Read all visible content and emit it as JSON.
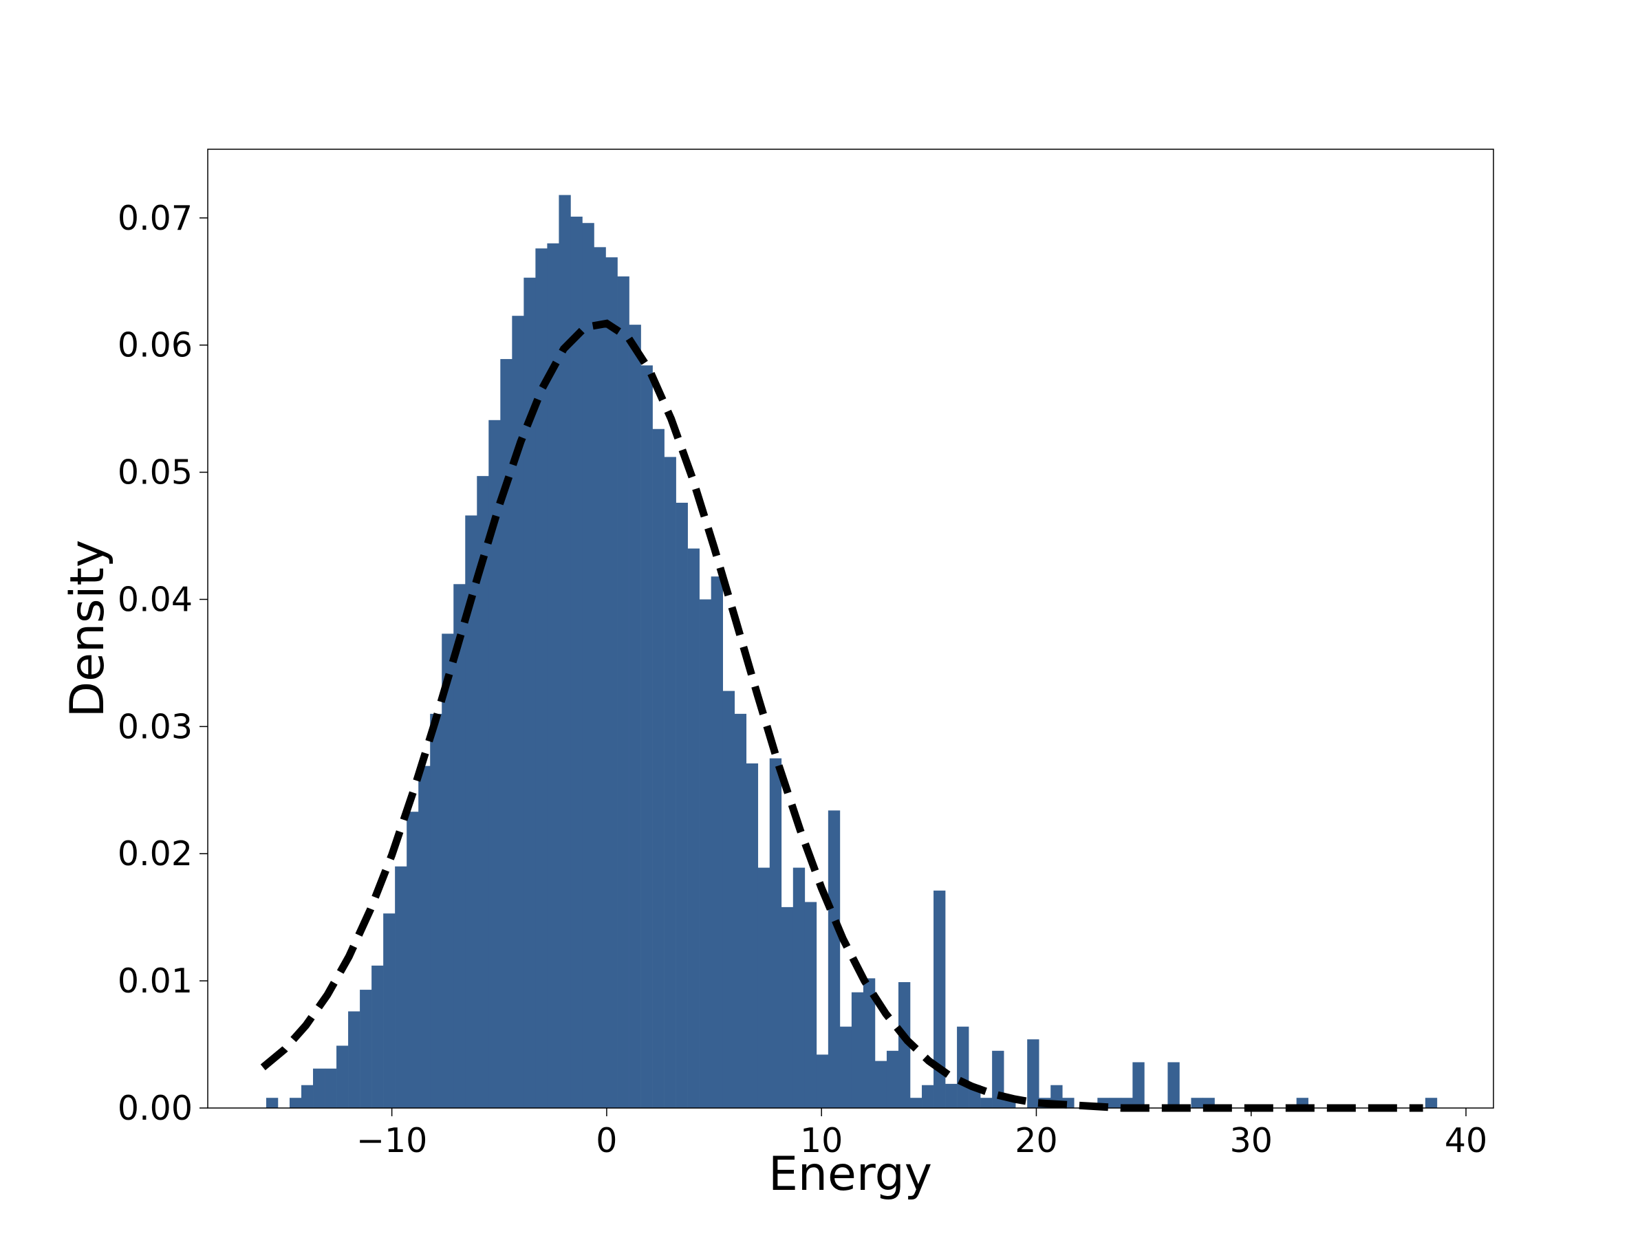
{
  "chart_data": {
    "type": "histogram",
    "xlabel": "Energy",
    "ylabel": "Density",
    "color": "#386192",
    "bins": [
      -15.85,
      -15.305,
      -14.76,
      -14.215,
      -13.67,
      -13.125,
      -12.58,
      -12.035,
      -11.49,
      -10.945,
      -10.4,
      -9.855,
      -9.31,
      -8.765,
      -8.22,
      -7.675,
      -7.13,
      -6.585,
      -6.04,
      -5.495,
      -4.95,
      -4.405,
      -3.86,
      -3.315,
      -2.77,
      -2.225,
      -1.68,
      -1.135,
      -0.59,
      -0.045,
      0.5,
      1.045,
      1.59,
      2.135,
      2.68,
      3.225,
      3.77,
      4.315,
      4.86,
      5.405,
      5.95,
      6.495,
      7.04,
      7.585,
      8.13,
      8.675,
      9.22,
      9.765,
      10.31,
      10.855,
      11.4,
      11.945,
      12.49,
      13.035,
      13.58,
      14.125,
      14.67,
      15.215,
      15.76,
      16.305,
      16.85,
      17.395,
      17.94,
      18.485,
      19.03,
      19.575,
      20.12,
      20.665,
      21.21,
      21.755,
      22.3,
      22.845,
      23.39,
      23.935,
      24.48,
      25.025,
      25.57,
      26.115,
      26.66,
      27.205,
      27.75,
      28.295,
      28.84,
      29.385,
      29.93,
      30.475,
      31.02,
      31.565,
      32.11,
      32.655,
      33.2,
      33.745,
      34.29,
      34.835,
      35.38,
      35.925,
      36.47,
      37.015,
      37.56,
      38.105,
      38.65
    ],
    "values": [
      0.0008,
      0,
      0.0008,
      0.0018,
      0.0031,
      0.0031,
      0.0049,
      0.0076,
      0.0093,
      0.0112,
      0.0153,
      0.019,
      0.0233,
      0.0269,
      0.031,
      0.0373,
      0.0412,
      0.0466,
      0.0497,
      0.0541,
      0.0589,
      0.0623,
      0.0653,
      0.0676,
      0.068,
      0.0718,
      0.0701,
      0.0696,
      0.0677,
      0.0669,
      0.0654,
      0.0616,
      0.0584,
      0.0534,
      0.0512,
      0.0476,
      0.044,
      0.04,
      0.0418,
      0.0328,
      0.031,
      0.0271,
      0.0189,
      0.0275,
      0.0158,
      0.0189,
      0.0162,
      0.0042,
      0.0234,
      0.0064,
      0.0091,
      0.0102,
      0.0037,
      0.0045,
      0.0099,
      0.0008,
      0.0018,
      0.0171,
      0.0019,
      0.0064,
      0.0018,
      0.0008,
      0.0045,
      0.0008,
      0,
      0.0054,
      0.0008,
      0.0018,
      0.0008,
      0,
      0,
      0.0008,
      0.0008,
      0.0008,
      0.0036,
      0,
      0,
      0.0036,
      0,
      0.0008,
      0.0008,
      0,
      0,
      0,
      0,
      0,
      0,
      0,
      0.0008,
      0,
      0,
      0,
      0,
      0,
      0,
      0,
      0,
      0,
      0,
      0.0008
    ],
    "curve": {
      "color": "#000000",
      "x": [
        -16,
        -15,
        -14,
        -13,
        -12,
        -11,
        -10,
        -9,
        -8,
        -7,
        -6,
        -5,
        -4,
        -3,
        -2,
        -1,
        0,
        1,
        2,
        3,
        4,
        5,
        6,
        7,
        8,
        9,
        10,
        11,
        12,
        13,
        14,
        15,
        16,
        17,
        18,
        19,
        20,
        21,
        22,
        23,
        24,
        25,
        26,
        27,
        28,
        29,
        30,
        31,
        32,
        33,
        34,
        35,
        36,
        37,
        38
      ],
      "values": [
        0.0032,
        0.0046,
        0.0065,
        0.0089,
        0.0119,
        0.0156,
        0.0199,
        0.0249,
        0.0303,
        0.036,
        0.0418,
        0.0474,
        0.0524,
        0.0566,
        0.0597,
        0.0614,
        0.0617,
        0.0606,
        0.058,
        0.0542,
        0.0495,
        0.0441,
        0.0384,
        0.0326,
        0.027,
        0.0219,
        0.0173,
        0.0133,
        0.01,
        0.0074,
        0.0053,
        0.0037,
        0.0025,
        0.0017,
        0.0011,
        0.0007,
        0.0004,
        0.0003,
        0.0002,
        0.0001,
        0,
        0,
        0,
        0,
        0,
        0,
        0,
        0,
        0,
        0,
        0,
        0,
        0,
        0,
        0
      ]
    },
    "xlim": [
      -18.57,
      41.28
    ],
    "ylim": [
      0,
      0.0754
    ],
    "xticks": [
      {
        "value": -10,
        "label": "−10"
      },
      0,
      10,
      20,
      30,
      40
    ],
    "yticks": [
      {
        "value": 0,
        "label": "0.00"
      },
      0.01,
      0.02,
      0.03,
      0.04,
      0.05,
      0.06,
      0.07
    ]
  }
}
